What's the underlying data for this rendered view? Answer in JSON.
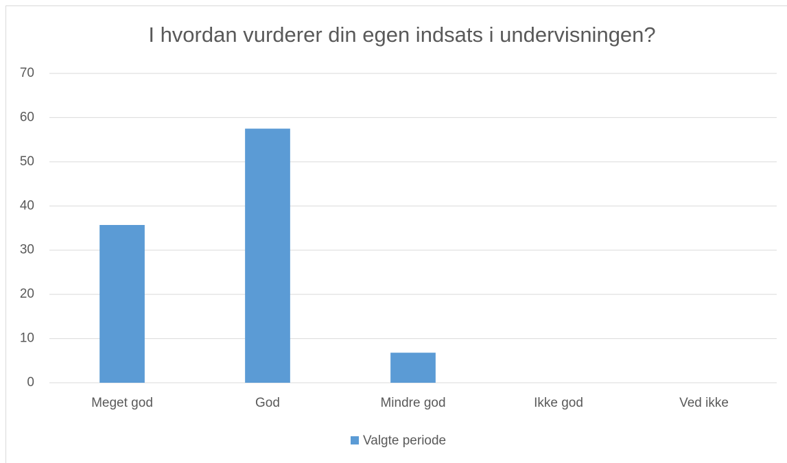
{
  "chart_data": {
    "type": "bar",
    "title": "I hvordan vurderer din egen indsats i undervisningen?",
    "categories": [
      "Meget god",
      "God",
      "Mindre god",
      "Ikke god",
      "Ved ikke"
    ],
    "series": [
      {
        "name": "Valgte periode",
        "color": "#5b9bd5",
        "values": [
          35.7,
          57.5,
          6.8,
          0,
          0
        ]
      }
    ],
    "ylim": [
      0,
      70
    ],
    "yticks": [
      0,
      10,
      20,
      30,
      40,
      50,
      60,
      70
    ],
    "grid": true,
    "legend": "bottom"
  }
}
